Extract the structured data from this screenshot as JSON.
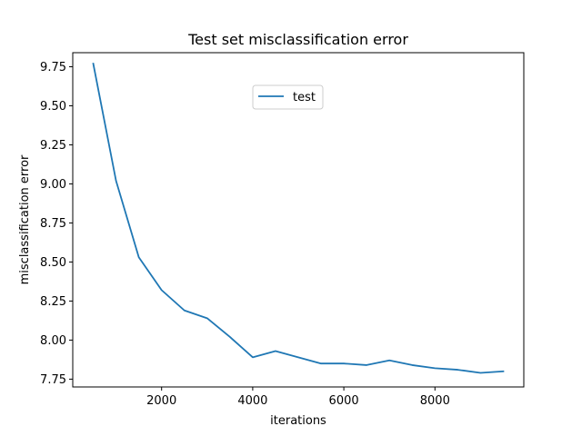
{
  "chart_data": {
    "type": "line",
    "title": "Test set misclassification error",
    "xlabel": "iterations",
    "ylabel": "misclassification error",
    "xlim": [
      50,
      9950
    ],
    "ylim": [
      7.7,
      9.84
    ],
    "xticks": [
      2000,
      4000,
      6000,
      8000
    ],
    "yticks": [
      7.75,
      8.0,
      8.25,
      8.5,
      8.75,
      9.0,
      9.25,
      9.5,
      9.75
    ],
    "xtick_labels": [
      "2000",
      "4000",
      "6000",
      "8000"
    ],
    "ytick_labels": [
      "7.75",
      "8.00",
      "8.25",
      "8.50",
      "8.75",
      "9.00",
      "9.25",
      "9.50",
      "9.75"
    ],
    "grid": false,
    "legend_position": "upper center",
    "series": [
      {
        "name": "test",
        "color": "#1f77b4",
        "x": [
          500,
          1000,
          1500,
          2000,
          2500,
          3000,
          3500,
          4000,
          4500,
          5000,
          5500,
          6000,
          6500,
          7000,
          7500,
          8000,
          8500,
          9000,
          9500
        ],
        "y": [
          9.77,
          9.02,
          8.53,
          8.32,
          8.19,
          8.14,
          8.02,
          7.89,
          7.93,
          7.89,
          7.85,
          7.85,
          7.84,
          7.87,
          7.84,
          7.82,
          7.81,
          7.79,
          7.8
        ]
      }
    ]
  }
}
